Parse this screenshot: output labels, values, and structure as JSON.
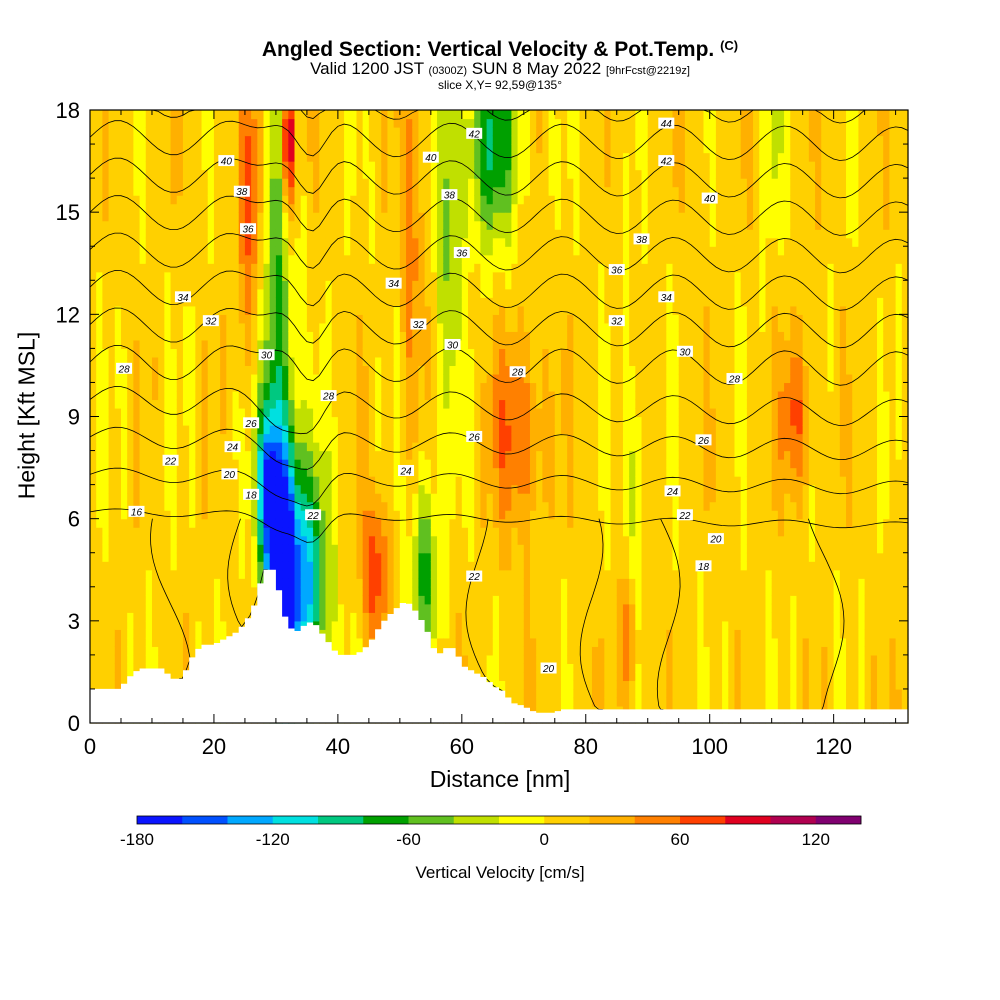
{
  "title": {
    "main": "Angled Section: Vertical Velocity & Pot.Temp.",
    "copyright": "(C)",
    "valid_prefix": "Valid 1200 JST",
    "valid_utc": "(0300Z)",
    "valid_date": "SUN 8 May 2022",
    "forecast": "[9hrFcst@2219z]",
    "slice": "slice X,Y= 92,59@135°"
  },
  "chart_data": {
    "type": "heatmap",
    "xlabel": "Distance [nm]",
    "ylabel": "Height [Kft MSL]",
    "xlim": [
      0,
      132
    ],
    "ylim": [
      0,
      18
    ],
    "x_ticks": [
      0,
      20,
      40,
      60,
      80,
      100,
      120
    ],
    "y_ticks": [
      0,
      3,
      6,
      9,
      12,
      15,
      18
    ],
    "colorbar": {
      "label": "Vertical Velocity [cm/s]",
      "min": -180,
      "max": 140,
      "step": 20,
      "tick_values": [
        -180,
        -120,
        -60,
        0,
        60,
        120
      ],
      "colors": [
        "#0a14ff",
        "#0050ff",
        "#00a8ff",
        "#00e0e0",
        "#00c880",
        "#00a000",
        "#60c020",
        "#c0e000",
        "#ffff00",
        "#ffd000",
        "#ffb000",
        "#ff8000",
        "#ff4000",
        "#e00020",
        "#b00050",
        "#800070"
      ]
    },
    "velocity_features": [
      {
        "x": 31,
        "z": 4.5,
        "sx": 1.8,
        "sz": 3.0,
        "value": -170
      },
      {
        "x": 35,
        "z": 4.0,
        "sx": 2.5,
        "sz": 2.5,
        "value": -120
      },
      {
        "x": 30,
        "z": 11,
        "sx": 1.8,
        "sz": 6.0,
        "value": -70
      },
      {
        "x": 28.5,
        "z": 7,
        "sx": 1.2,
        "sz": 1.5,
        "value": -100
      },
      {
        "x": 32,
        "z": 17,
        "sx": 0.8,
        "sz": 1.5,
        "value": 120
      },
      {
        "x": 26,
        "z": 15,
        "sx": 1.5,
        "sz": 3.0,
        "value": 55
      },
      {
        "x": 46,
        "z": 4.5,
        "sx": 1.5,
        "sz": 1.5,
        "value": 70
      },
      {
        "x": 54,
        "z": 4.5,
        "sx": 1.5,
        "sz": 2.0,
        "value": -70
      },
      {
        "x": 58,
        "z": 15,
        "sx": 1.5,
        "sz": 4.0,
        "value": -55
      },
      {
        "x": 65,
        "z": 17,
        "sx": 3.0,
        "sz": 2.0,
        "value": -85
      },
      {
        "x": 52,
        "z": 15,
        "sx": 1.2,
        "sz": 4.0,
        "value": 45
      },
      {
        "x": 69,
        "z": 8.5,
        "sx": 3.0,
        "sz": 2.0,
        "value": 55
      },
      {
        "x": 87,
        "z": 2.5,
        "sx": 0.8,
        "sz": 1.5,
        "value": 60
      },
      {
        "x": 88,
        "z": 7,
        "sx": 1.0,
        "sz": 3.0,
        "value": -40
      },
      {
        "x": 114,
        "z": 9,
        "sx": 2.0,
        "sz": 1.5,
        "value": 50
      },
      {
        "x": 110,
        "z": 17,
        "sx": 1.0,
        "sz": 2.0,
        "value": -30
      }
    ],
    "terrain_kft": [
      [
        0,
        1.0
      ],
      [
        5,
        1.0
      ],
      [
        6,
        1.3
      ],
      [
        8,
        1.6
      ],
      [
        12,
        1.6
      ],
      [
        13,
        1.3
      ],
      [
        15,
        1.3
      ],
      [
        16,
        1.8
      ],
      [
        18,
        2.3
      ],
      [
        20,
        2.3
      ],
      [
        22,
        2.5
      ],
      [
        24,
        2.7
      ],
      [
        26,
        3.2
      ],
      [
        27,
        3.7
      ],
      [
        28,
        4.5
      ],
      [
        30,
        4.5
      ],
      [
        31,
        3.3
      ],
      [
        33,
        2.6
      ],
      [
        34,
        2.8
      ],
      [
        36,
        3.0
      ],
      [
        38,
        2.5
      ],
      [
        40,
        2.0
      ],
      [
        43,
        2.0
      ],
      [
        45,
        2.3
      ],
      [
        47,
        2.9
      ],
      [
        49,
        3.3
      ],
      [
        51,
        3.6
      ],
      [
        53,
        3.2
      ],
      [
        55,
        2.5
      ],
      [
        56,
        1.9
      ],
      [
        57,
        2.2
      ],
      [
        59,
        2.2
      ],
      [
        60,
        1.7
      ],
      [
        62,
        1.5
      ],
      [
        64,
        1.3
      ],
      [
        65,
        1.1
      ],
      [
        67,
        0.9
      ],
      [
        68,
        0.6
      ],
      [
        70,
        0.5
      ],
      [
        72,
        0.3
      ],
      [
        75,
        0.3
      ],
      [
        76,
        0.4
      ],
      [
        132,
        0.4
      ]
    ],
    "isentropes": [
      16,
      18,
      20,
      22,
      24,
      26,
      28,
      30,
      32,
      34,
      36,
      38,
      40,
      42,
      44
    ],
    "isentrope_labels": [
      {
        "text": "40",
        "x": 22,
        "z": 16.5
      },
      {
        "text": "38",
        "x": 24.5,
        "z": 15.6
      },
      {
        "text": "36",
        "x": 25.5,
        "z": 14.5
      },
      {
        "text": "34",
        "x": 15,
        "z": 12.5
      },
      {
        "text": "32",
        "x": 19.5,
        "z": 11.8
      },
      {
        "text": "30",
        "x": 28.5,
        "z": 10.8
      },
      {
        "text": "28",
        "x": 5.5,
        "z": 10.4
      },
      {
        "text": "28",
        "x": 38.5,
        "z": 9.6
      },
      {
        "text": "26",
        "x": 26,
        "z": 8.8
      },
      {
        "text": "24",
        "x": 23,
        "z": 8.1
      },
      {
        "text": "22",
        "x": 13,
        "z": 7.7
      },
      {
        "text": "20",
        "x": 22.5,
        "z": 7.3
      },
      {
        "text": "18",
        "x": 26,
        "z": 6.7
      },
      {
        "text": "16",
        "x": 7.5,
        "z": 6.2
      },
      {
        "text": "22",
        "x": 36,
        "z": 6.1
      },
      {
        "text": "34",
        "x": 49,
        "z": 12.9
      },
      {
        "text": "32",
        "x": 53,
        "z": 11.7
      },
      {
        "text": "30",
        "x": 58.5,
        "z": 11.1
      },
      {
        "text": "40",
        "x": 55,
        "z": 16.6
      },
      {
        "text": "42",
        "x": 62,
        "z": 17.3
      },
      {
        "text": "38",
        "x": 58,
        "z": 15.5
      },
      {
        "text": "36",
        "x": 60,
        "z": 13.8
      },
      {
        "text": "28",
        "x": 69,
        "z": 10.3
      },
      {
        "text": "26",
        "x": 62,
        "z": 8.4
      },
      {
        "text": "24",
        "x": 51,
        "z": 7.4
      },
      {
        "text": "22",
        "x": 62,
        "z": 4.3
      },
      {
        "text": "20",
        "x": 74,
        "z": 1.6
      },
      {
        "text": "44",
        "x": 93,
        "z": 17.6
      },
      {
        "text": "42",
        "x": 93,
        "z": 16.5
      },
      {
        "text": "40",
        "x": 100,
        "z": 15.4
      },
      {
        "text": "38",
        "x": 89,
        "z": 14.2
      },
      {
        "text": "36",
        "x": 85,
        "z": 13.3
      },
      {
        "text": "34",
        "x": 93,
        "z": 12.5
      },
      {
        "text": "32",
        "x": 85,
        "z": 11.8
      },
      {
        "text": "30",
        "x": 96,
        "z": 10.9
      },
      {
        "text": "28",
        "x": 104,
        "z": 10.1
      },
      {
        "text": "26",
        "x": 99,
        "z": 8.3
      },
      {
        "text": "24",
        "x": 94,
        "z": 6.8
      },
      {
        "text": "22",
        "x": 96,
        "z": 6.1
      },
      {
        "text": "20",
        "x": 101,
        "z": 5.4
      },
      {
        "text": "18",
        "x": 99,
        "z": 4.6
      }
    ]
  }
}
